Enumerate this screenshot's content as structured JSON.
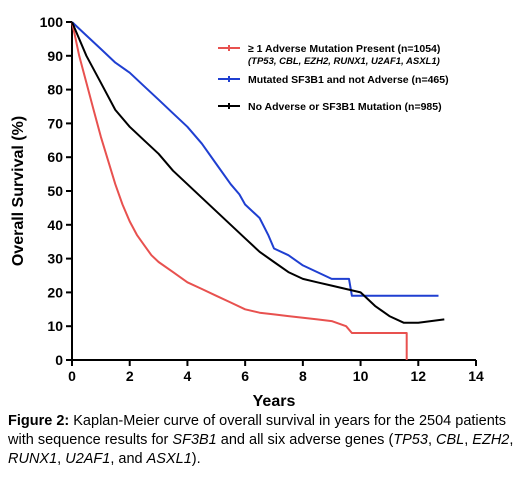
{
  "chart_data": {
    "type": "line",
    "xlabel": "Years",
    "ylabel": "Overall Survival (%)",
    "xlim": [
      0,
      14
    ],
    "ylim": [
      0,
      100
    ],
    "xticks": [
      "0",
      "2",
      "4",
      "6",
      "8",
      "10",
      "12",
      "14"
    ],
    "yticks": [
      "0",
      "10",
      "20",
      "30",
      "40",
      "50",
      "60",
      "70",
      "80",
      "90",
      "100"
    ],
    "grid": false,
    "legend_position": "top-right",
    "series": [
      {
        "name": "≥ 1 Adverse Mutation Present (n=1054)",
        "subtitle": "(TP53, CBL, EZH2, RUNX1, U2AF1, ASXL1)",
        "color": "#e8514f",
        "points": [
          [
            0,
            100
          ],
          [
            0.1,
            96
          ],
          [
            0.25,
            90
          ],
          [
            0.5,
            82
          ],
          [
            0.75,
            74
          ],
          [
            1,
            66
          ],
          [
            1.25,
            59
          ],
          [
            1.5,
            52
          ],
          [
            1.75,
            46
          ],
          [
            2,
            41
          ],
          [
            2.25,
            37
          ],
          [
            2.5,
            34
          ],
          [
            2.75,
            31
          ],
          [
            3,
            29
          ],
          [
            3.5,
            26
          ],
          [
            4,
            23
          ],
          [
            4.5,
            21
          ],
          [
            5,
            19
          ],
          [
            5.5,
            17
          ],
          [
            6,
            15
          ],
          [
            6.5,
            14
          ],
          [
            7,
            13.5
          ],
          [
            7.5,
            13
          ],
          [
            8,
            12.5
          ],
          [
            8.5,
            12
          ],
          [
            9,
            11.5
          ],
          [
            9.5,
            10
          ],
          [
            9.7,
            8
          ],
          [
            10.5,
            8
          ],
          [
            11.6,
            8
          ],
          [
            11.6,
            0
          ]
        ]
      },
      {
        "name": "Mutated SF3B1 and not Adverse (n=465)",
        "color": "#1f3fd1",
        "points": [
          [
            0,
            100
          ],
          [
            0.5,
            96
          ],
          [
            1,
            92
          ],
          [
            1.5,
            88
          ],
          [
            2,
            85
          ],
          [
            2.5,
            81
          ],
          [
            3,
            77
          ],
          [
            3.5,
            73
          ],
          [
            4,
            69
          ],
          [
            4.5,
            64
          ],
          [
            5,
            58
          ],
          [
            5.5,
            52
          ],
          [
            5.8,
            49
          ],
          [
            6,
            46
          ],
          [
            6.5,
            42
          ],
          [
            6.8,
            37
          ],
          [
            7,
            33
          ],
          [
            7.5,
            31
          ],
          [
            8,
            28
          ],
          [
            8.5,
            26
          ],
          [
            9,
            24
          ],
          [
            9.6,
            24
          ],
          [
            9.7,
            19
          ],
          [
            11,
            19
          ],
          [
            12.7,
            19
          ]
        ]
      },
      {
        "name": "No Adverse or SF3B1 Mutation (n=985)",
        "color": "#000000",
        "points": [
          [
            0,
            100
          ],
          [
            0.5,
            90
          ],
          [
            1,
            82
          ],
          [
            1.5,
            74
          ],
          [
            2,
            69
          ],
          [
            2.5,
            65
          ],
          [
            3,
            61
          ],
          [
            3.5,
            56
          ],
          [
            4,
            52
          ],
          [
            4.5,
            48
          ],
          [
            5,
            44
          ],
          [
            5.5,
            40
          ],
          [
            6,
            36
          ],
          [
            6.5,
            32
          ],
          [
            7,
            29
          ],
          [
            7.5,
            26
          ],
          [
            8,
            24
          ],
          [
            8.5,
            23
          ],
          [
            9,
            22
          ],
          [
            9.5,
            21
          ],
          [
            10,
            20
          ],
          [
            10.5,
            16
          ],
          [
            11,
            13
          ],
          [
            11.5,
            11
          ],
          [
            12,
            11
          ],
          [
            12.9,
            12
          ]
        ]
      }
    ]
  },
  "caption": {
    "label": "Figure 2:",
    "part1": " Kaplan-Meier curve of overall survival in years for the 2504 patients with sequence results for ",
    "gene": "SF3B1",
    "part2": " and all six adverse genes (",
    "g1": "TP53",
    "s1": ", ",
    "g2": "CBL",
    "s2": ", ",
    "g3": "EZH2",
    "s3": ", ",
    "g4": "RUNX1",
    "s4": ", ",
    "g5": "U2AF1",
    "s5": ", and ",
    "g6": "ASXL1",
    "end": ")."
  }
}
